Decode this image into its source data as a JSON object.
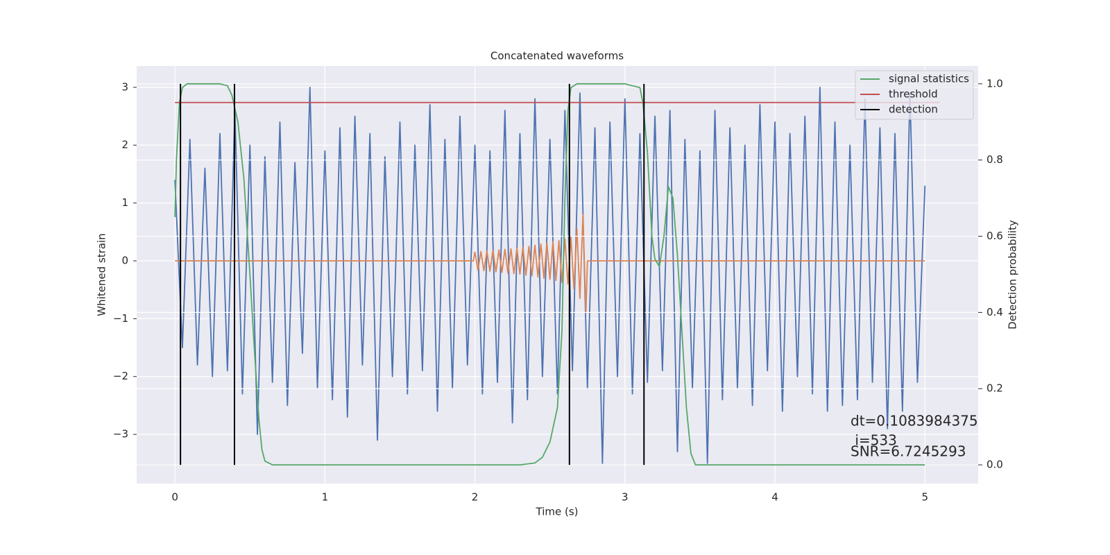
{
  "chart_data": {
    "type": "line",
    "title": "Concatenated waveforms",
    "xlabel": "Time (s)",
    "ylabel": "Whitened strain",
    "y2label": "Detection probability",
    "xlim": [
      -0.255,
      5.355
    ],
    "ylim": [
      -3.85,
      3.37
    ],
    "y2lim": [
      -0.049,
      1.047
    ],
    "xticks": [
      0,
      1,
      2,
      3,
      4,
      5
    ],
    "yticks": [
      {
        "value": -3,
        "label": "−3"
      },
      {
        "value": -2,
        "label": "−2"
      },
      {
        "value": -1,
        "label": "−1"
      },
      0,
      1,
      2,
      3
    ],
    "y2ticks": [
      {
        "value": 0,
        "label": "0.0"
      },
      0.2,
      0.4,
      0.6,
      0.8,
      {
        "value": 1,
        "label": "1.0"
      }
    ],
    "grid": true,
    "legend": "upper right",
    "series": [
      {
        "color": "#4c72b0",
        "x": [
          0,
          0.05,
          0.1,
          0.15,
          0.2,
          0.25,
          0.3,
          0.35,
          0.4,
          0.45,
          0.5,
          0.55,
          0.6,
          0.65,
          0.7,
          0.75,
          0.8,
          0.85,
          0.9,
          0.95,
          1,
          1.05,
          1.1,
          1.15,
          1.2,
          1.25,
          1.3,
          1.35,
          1.4,
          1.45,
          1.5,
          1.55,
          1.6,
          1.65,
          1.7,
          1.75,
          1.8,
          1.85,
          1.9,
          1.95,
          2,
          2.05,
          2.1,
          2.15,
          2.2,
          2.25,
          2.3,
          2.35,
          2.4,
          2.45,
          2.5,
          2.55,
          2.6,
          2.65,
          2.7,
          2.75,
          2.8,
          2.85,
          2.9,
          2.95,
          3,
          3.05,
          3.1,
          3.15,
          3.2,
          3.25,
          3.3,
          3.35,
          3.4,
          3.45,
          3.5,
          3.55,
          3.6,
          3.65,
          3.7,
          3.75,
          3.8,
          3.85,
          3.9,
          3.95,
          4,
          4.05,
          4.1,
          4.15,
          4.2,
          4.25,
          4.3,
          4.35,
          4.4,
          4.45,
          4.5,
          4.55,
          4.6,
          4.65,
          4.7,
          4.75,
          4.8,
          4.85,
          4.9,
          4.95,
          5
        ],
        "values": [
          1.4,
          -1.5,
          2.1,
          -1.8,
          1.6,
          -2.0,
          2.2,
          -1.9,
          2.6,
          -2.3,
          2.0,
          -3.0,
          1.8,
          -2.1,
          2.4,
          -2.5,
          1.7,
          -1.6,
          3.0,
          -2.2,
          1.9,
          -2.4,
          2.3,
          -2.7,
          2.5,
          -1.8,
          2.2,
          -3.1,
          1.8,
          -2.0,
          2.4,
          -2.3,
          2.0,
          -1.9,
          2.7,
          -2.6,
          2.1,
          -2.2,
          2.5,
          -1.8,
          2.0,
          -2.3,
          1.9,
          -2.1,
          2.6,
          -2.8,
          2.2,
          -2.4,
          2.8,
          -2.0,
          2.1,
          -2.3,
          2.6,
          -1.9,
          2.9,
          -2.2,
          2.3,
          -3.5,
          2.4,
          -2.0,
          2.8,
          -2.3,
          2.2,
          -2.1,
          2.5,
          -1.9,
          2.6,
          -3.3,
          2.1,
          -2.2,
          1.9,
          -3.5,
          2.6,
          -2.4,
          2.3,
          -2.2,
          2.0,
          -2.5,
          2.7,
          -1.9,
          2.4,
          -2.6,
          2.2,
          -2.0,
          2.5,
          -2.3,
          3.0,
          -2.6,
          2.4,
          -2.5,
          2.0,
          -2.4,
          2.8,
          -2.1,
          2.3,
          -2.9,
          2.2,
          -2.6,
          2.9,
          -2.1,
          1.3
        ]
      },
      {
        "color": "#dd8452",
        "x": [
          0,
          1.99,
          2.0,
          2.02,
          2.04,
          2.06,
          2.08,
          2.1,
          2.12,
          2.14,
          2.16,
          2.18,
          2.2,
          2.22,
          2.24,
          2.26,
          2.28,
          2.3,
          2.32,
          2.34,
          2.36,
          2.38,
          2.4,
          2.42,
          2.44,
          2.46,
          2.48,
          2.5,
          2.52,
          2.54,
          2.56,
          2.58,
          2.6,
          2.62,
          2.64,
          2.66,
          2.68,
          2.7,
          2.72,
          2.74,
          2.75,
          5
        ],
        "values": [
          0,
          0,
          0.15,
          -0.16,
          0.16,
          -0.17,
          0.17,
          -0.18,
          0.18,
          -0.19,
          0.19,
          -0.2,
          0.2,
          -0.21,
          0.21,
          -0.22,
          0.22,
          -0.23,
          0.24,
          -0.25,
          0.25,
          -0.26,
          0.27,
          -0.28,
          0.29,
          -0.3,
          0.31,
          -0.32,
          0.33,
          -0.34,
          0.35,
          -0.37,
          0.38,
          -0.4,
          0.42,
          -0.48,
          0.55,
          -0.65,
          0.8,
          -0.9,
          0,
          0
        ]
      },
      {
        "name": "signal statistics",
        "color": "#55a868",
        "axis": "y2",
        "x": [
          0,
          0.01,
          0.03,
          0.05,
          0.08,
          0.1,
          0.2,
          0.3,
          0.35,
          0.38,
          0.42,
          0.46,
          0.5,
          0.53,
          0.56,
          0.58,
          0.6,
          0.65,
          1,
          1.5,
          2,
          2.3,
          2.4,
          2.45,
          2.5,
          2.55,
          2.58,
          2.6,
          2.62,
          2.64,
          2.68,
          2.8,
          3.0,
          3.1,
          3.12,
          3.15,
          3.18,
          3.2,
          3.23,
          3.26,
          3.29,
          3.32,
          3.35,
          3.38,
          3.41,
          3.44,
          3.47,
          3.5,
          4,
          4.5,
          5.0
        ],
        "values": [
          0.65,
          0.8,
          0.95,
          0.99,
          1.0,
          1.0,
          1.0,
          1.0,
          0.995,
          0.97,
          0.9,
          0.75,
          0.5,
          0.3,
          0.12,
          0.04,
          0.01,
          0,
          0,
          0,
          0,
          0,
          0.005,
          0.02,
          0.06,
          0.15,
          0.35,
          0.7,
          0.93,
          0.99,
          1.0,
          1.0,
          1.0,
          0.99,
          0.95,
          0.82,
          0.6,
          0.54,
          0.52,
          0.6,
          0.73,
          0.7,
          0.55,
          0.35,
          0.15,
          0.03,
          0,
          0,
          0,
          0,
          0
        ]
      },
      {
        "name": "threshold",
        "color": "#c44e52",
        "axis": "y2",
        "x": [
          0,
          5.1
        ],
        "values": [
          0.951,
          0.951
        ]
      },
      {
        "name": "detection",
        "color": "#000000",
        "axis": "y2",
        "vertical": true,
        "x": [
          0.037,
          0.397,
          2.63,
          3.127
        ],
        "y_range": [
          0,
          1
        ]
      }
    ],
    "annotations": [
      "dt=0.1083984375",
      " i=533",
      "SNR=6.7245293"
    ]
  }
}
